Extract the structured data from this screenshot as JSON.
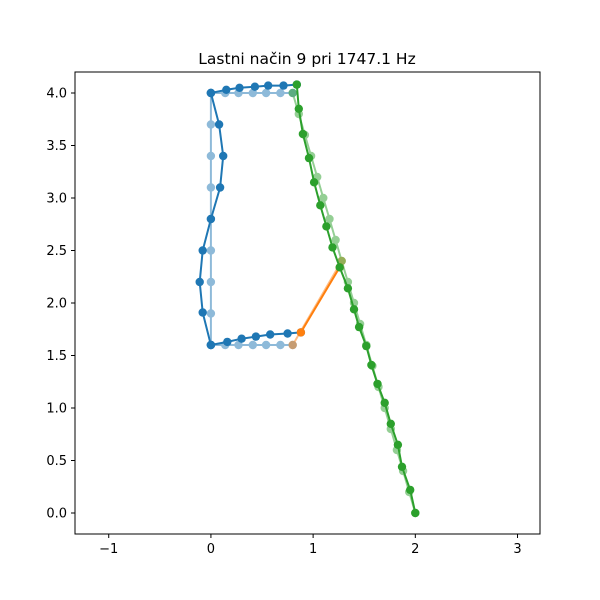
{
  "chart_data": {
    "type": "line",
    "title": "Lastni način 9 pri 1747.1 Hz",
    "xlabel": "",
    "ylabel": "",
    "xlim": [
      -1.33,
      3.22
    ],
    "ylim": [
      -0.2,
      4.2
    ],
    "xticks": [
      -1,
      0,
      1,
      2,
      3
    ],
    "yticks": [
      0.0,
      0.5,
      1.0,
      1.5,
      2.0,
      2.5,
      3.0,
      3.5,
      4.0
    ],
    "xtick_labels": [
      "−1",
      "0",
      "1",
      "2",
      "3"
    ],
    "ytick_labels": [
      "0.0",
      "0.5",
      "1.0",
      "1.5",
      "2.0",
      "2.5",
      "3.0",
      "3.5",
      "4.0"
    ],
    "grid": false,
    "series": [
      {
        "role": "undeformed",
        "color": "#1f77b4",
        "opacity": 0.5,
        "segments": [
          [
            [
              0.0,
              1.6
            ],
            [
              0.14,
              1.6
            ],
            [
              0.27,
              1.6
            ],
            [
              0.41,
              1.6
            ],
            [
              0.54,
              1.6
            ],
            [
              0.68,
              1.6
            ],
            [
              0.8,
              1.6
            ]
          ],
          [
            [
              0.0,
              1.6
            ],
            [
              0.0,
              1.9
            ],
            [
              0.0,
              2.2
            ],
            [
              0.0,
              2.5
            ],
            [
              0.0,
              2.8
            ],
            [
              0.0,
              3.1
            ],
            [
              0.0,
              3.4
            ],
            [
              0.0,
              3.7
            ],
            [
              0.0,
              4.0
            ]
          ],
          [
            [
              0.0,
              4.0
            ],
            [
              0.14,
              4.0
            ],
            [
              0.27,
              4.0
            ],
            [
              0.41,
              4.0
            ],
            [
              0.54,
              4.0
            ],
            [
              0.68,
              4.0
            ],
            [
              0.8,
              4.0
            ]
          ]
        ]
      },
      {
        "role": "undeformed",
        "color": "#ff7f0e",
        "opacity": 0.5,
        "segments": [
          [
            [
              0.8,
              1.6
            ],
            [
              1.28,
              2.4
            ]
          ]
        ]
      },
      {
        "role": "undeformed",
        "color": "#2ca02c",
        "opacity": 0.5,
        "segments": [
          [
            [
              2.0,
              0.0
            ],
            [
              1.94,
              0.2
            ],
            [
              1.88,
              0.4
            ],
            [
              1.82,
              0.6
            ],
            [
              1.76,
              0.8
            ],
            [
              1.7,
              1.0
            ],
            [
              1.64,
              1.2
            ],
            [
              1.58,
              1.4
            ],
            [
              1.52,
              1.6
            ],
            [
              1.46,
              1.8
            ],
            [
              1.4,
              2.0
            ],
            [
              1.34,
              2.2
            ],
            [
              1.28,
              2.4
            ],
            [
              1.22,
              2.6
            ],
            [
              1.16,
              2.8
            ],
            [
              1.1,
              3.0
            ],
            [
              1.04,
              3.2
            ],
            [
              0.98,
              3.4
            ],
            [
              0.92,
              3.6
            ],
            [
              0.86,
              3.8
            ],
            [
              0.8,
              4.0
            ]
          ]
        ]
      },
      {
        "role": "mode",
        "color": "#1f77b4",
        "opacity": 1,
        "segments": [
          [
            [
              0.0,
              1.6
            ],
            [
              0.16,
              1.63
            ],
            [
              0.3,
              1.66
            ],
            [
              0.44,
              1.68
            ],
            [
              0.58,
              1.7
            ],
            [
              0.75,
              1.71
            ],
            [
              0.88,
              1.72
            ]
          ],
          [
            [
              0.0,
              1.6
            ],
            [
              -0.08,
              1.91
            ],
            [
              -0.11,
              2.2
            ],
            [
              -0.08,
              2.5
            ],
            [
              0.0,
              2.8
            ],
            [
              0.09,
              3.1
            ],
            [
              0.12,
              3.4
            ],
            [
              0.08,
              3.7
            ],
            [
              0.0,
              4.0
            ]
          ],
          [
            [
              0.0,
              4.0
            ],
            [
              0.15,
              4.03
            ],
            [
              0.28,
              4.05
            ],
            [
              0.43,
              4.06
            ],
            [
              0.56,
              4.07
            ],
            [
              0.71,
              4.07
            ],
            [
              0.84,
              4.08
            ]
          ]
        ]
      },
      {
        "role": "mode",
        "color": "#ff7f0e",
        "opacity": 1,
        "segments": [
          [
            [
              0.88,
              1.72
            ],
            [
              1.26,
              2.34
            ]
          ]
        ]
      },
      {
        "role": "mode",
        "color": "#2ca02c",
        "opacity": 1,
        "segments": [
          [
            [
              2.0,
              0.0
            ],
            [
              1.95,
              0.22
            ],
            [
              1.87,
              0.44
            ],
            [
              1.83,
              0.65
            ],
            [
              1.76,
              0.85
            ],
            [
              1.7,
              1.05
            ],
            [
              1.63,
              1.23
            ],
            [
              1.57,
              1.41
            ],
            [
              1.52,
              1.59
            ],
            [
              1.45,
              1.77
            ],
            [
              1.4,
              1.94
            ],
            [
              1.34,
              2.14
            ],
            [
              1.26,
              2.34
            ],
            [
              1.19,
              2.53
            ],
            [
              1.13,
              2.73
            ],
            [
              1.07,
              2.93
            ],
            [
              1.01,
              3.15
            ],
            [
              0.96,
              3.38
            ],
            [
              0.9,
              3.61
            ],
            [
              0.86,
              3.85
            ],
            [
              0.84,
              4.08
            ]
          ]
        ]
      }
    ]
  }
}
